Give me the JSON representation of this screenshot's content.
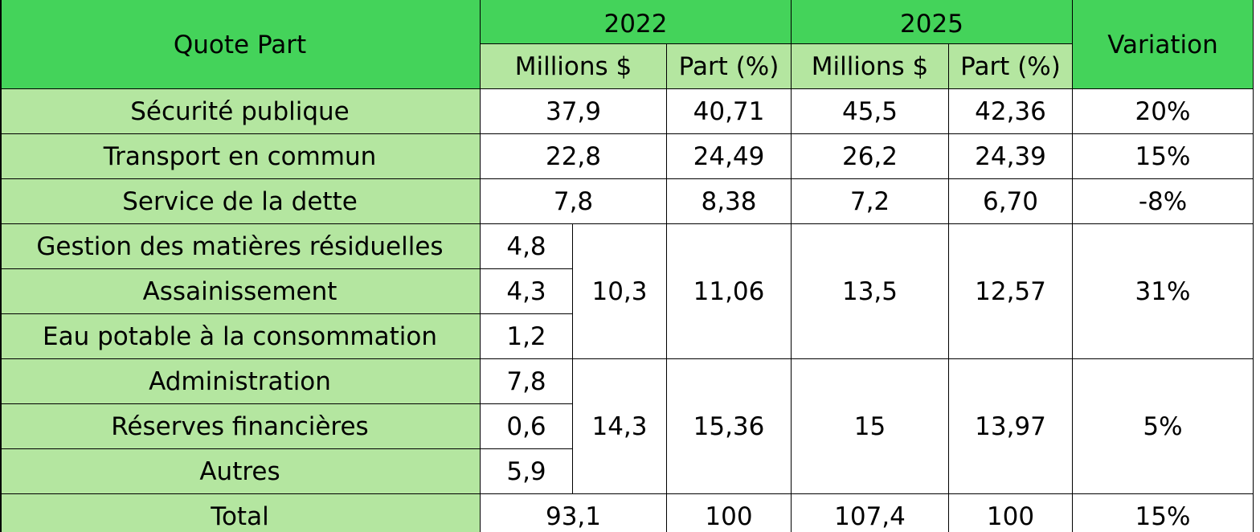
{
  "table": {
    "header": {
      "title": "Quote Part",
      "years": [
        "2022",
        "2025"
      ],
      "subheaders": [
        "Millions $",
        "Part (%)",
        "Millions $",
        "Part (%)"
      ],
      "variation": "Variation"
    },
    "rows": [
      {
        "label": "Sécurité publique",
        "cells": [
          "37,9",
          "40,71",
          "45,5",
          "42,36",
          "20%"
        ]
      },
      {
        "label": "Transport en commun",
        "cells": [
          "22,8",
          "24,49",
          "26,2",
          "24,39",
          "15%"
        ]
      },
      {
        "label": "Service de la dette",
        "cells": [
          "7,8",
          "8,38",
          "7,2",
          "6,70",
          "-8%"
        ]
      },
      {
        "group": [
          {
            "label": "Gestion des matières résiduelles",
            "value": "4,8"
          },
          {
            "label": "Assainissement",
            "value": "4,3"
          },
          {
            "label": "Eau potable à la consommation",
            "value": "1,2"
          }
        ],
        "cells": [
          "10,3",
          "11,06",
          "13,5",
          "12,57",
          "31%"
        ]
      },
      {
        "group": [
          {
            "label": "Administration",
            "value": "7,8"
          },
          {
            "label": "Réserves financières",
            "value": "0,6"
          },
          {
            "label": "Autres",
            "value": "5,9"
          }
        ],
        "cells": [
          "14,3",
          "15,36",
          "15",
          "13,97",
          "5%"
        ]
      },
      {
        "label": "Total",
        "cells": [
          "93,1",
          "100",
          "107,4",
          "100",
          "15%"
        ]
      }
    ]
  }
}
